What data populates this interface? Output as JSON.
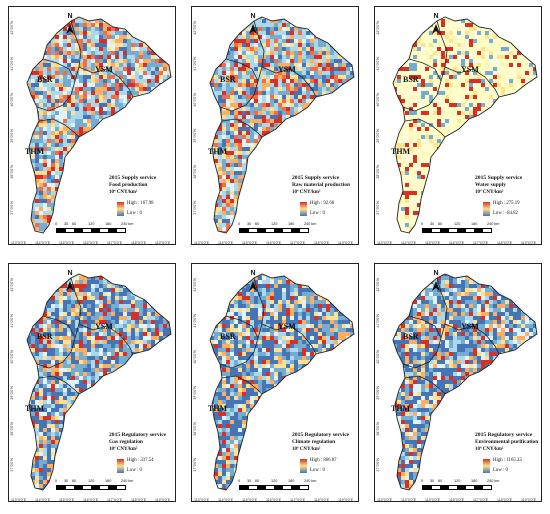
{
  "figure": {
    "longitude_labels": [
      "113°0'0\"E",
      "114°0'0\"E",
      "115°0'0\"E",
      "116°0'0\"E",
      "117°0'0\"E",
      "118°0'0\"E",
      "119°0'0\"E"
    ],
    "latitude_labels": [
      "42°0'0\"N",
      "41°0'0\"N",
      "40°0'0\"N",
      "39°0'0\"N",
      "38°0'0\"N",
      "37°0'0\"N"
    ],
    "north_label": "N",
    "regions": {
      "bsr": "BSR",
      "ysm": "YSM",
      "thm": "THM"
    },
    "scale_bar": {
      "ticks": [
        "0",
        "30",
        "60",
        "120",
        "180",
        "240 km"
      ]
    },
    "unit": "10⁴ CNY/km²",
    "high_prefix": "High : ",
    "low_prefix": "Low : ",
    "colors": {
      "high": "#d7301f",
      "mid": "#fee08b",
      "low": "#4575b4",
      "boundary": "#222222"
    }
  },
  "panels": [
    {
      "title": "2015 Supply service",
      "subtitle": "Food production",
      "high": "167.98",
      "low": "0",
      "dominant": "mixed"
    },
    {
      "title": "2015 Supply service",
      "subtitle": "Raw material production",
      "high": "92.66",
      "low": "0",
      "dominant": "mixed"
    },
    {
      "title": "2015 Supply service",
      "subtitle": "Water supply",
      "high": "275.19",
      "low": "-84.82",
      "dominant": "yellow"
    },
    {
      "title": "2015 Regulatory service",
      "subtitle": "Gas regulation",
      "high": "337.54",
      "low": "0",
      "dominant": "blue"
    },
    {
      "title": "2015 Regulatory service",
      "subtitle": "Climate regulation",
      "high": "866.87",
      "low": "0",
      "dominant": "blue"
    },
    {
      "title": "2015 Regulatory service",
      "subtitle": "Environmental purification",
      "high": "1165.33",
      "low": "0",
      "dominant": "blue"
    }
  ]
}
